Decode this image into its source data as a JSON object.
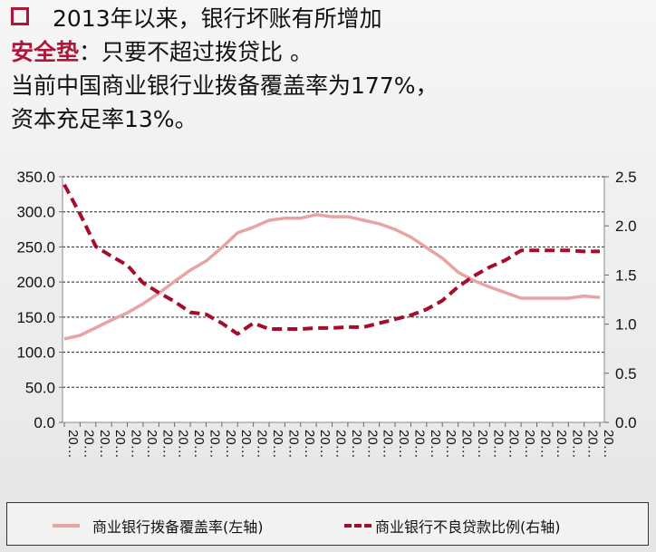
{
  "header": {
    "line1": "2013年以来，银行坏账有所增加",
    "line2_highlight": "安全垫",
    "line2_rest": "：只要不超过拨贷比 。",
    "line3": "当前中国商业银行业拨备覆盖率为177%，",
    "line4": "资本充足率13%。",
    "bullet_icon": "hollow-square-icon"
  },
  "colors": {
    "accent": "#b0163a",
    "series_left": "#e8a3a3",
    "series_right": "#a50e2a"
  },
  "chart_data": {
    "type": "line",
    "categories": [
      "20…",
      "20…",
      "20…",
      "20…",
      "20…",
      "20…",
      "20…",
      "20…",
      "20…",
      "20…",
      "20…",
      "20…",
      "20…",
      "20…",
      "20…",
      "20…",
      "20…",
      "20…",
      "20…",
      "20…",
      "20…",
      "20…",
      "20…",
      "20…",
      "20…",
      "20…",
      "20…",
      "20…",
      "20…",
      "20…",
      "20…",
      "20…",
      "20…",
      "20…",
      "20…"
    ],
    "series": [
      {
        "name": "商业银行拨备覆盖率(左轴)",
        "axis": "left",
        "style": "solid",
        "color": "#e8a3a3",
        "values": [
          119,
          124,
          135,
          146,
          156,
          169,
          184,
          201,
          217,
          230,
          249,
          270,
          278,
          288,
          291,
          291,
          296,
          293,
          293,
          288,
          283,
          275,
          264,
          249,
          234,
          214,
          202,
          193,
          185,
          177,
          177,
          177,
          177,
          180,
          178
        ]
      },
      {
        "name": "商业银行不良贷款比例(右轴)",
        "axis": "right",
        "style": "dashed",
        "color": "#a50e2a",
        "values": [
          2.42,
          2.12,
          1.79,
          1.69,
          1.6,
          1.42,
          1.32,
          1.23,
          1.12,
          1.1,
          1.01,
          0.9,
          1.01,
          0.95,
          0.95,
          0.95,
          0.96,
          0.96,
          0.97,
          0.97,
          1.01,
          1.05,
          1.09,
          1.15,
          1.24,
          1.38,
          1.49,
          1.58,
          1.65,
          1.75,
          1.75,
          1.75,
          1.75,
          1.74,
          1.74
        ]
      }
    ],
    "y_left": {
      "range": [
        0,
        350
      ],
      "ticks": [
        "0.0",
        "50.0",
        "100.0",
        "150.0",
        "200.0",
        "250.0",
        "300.0",
        "350.0"
      ]
    },
    "y_right": {
      "range": [
        0,
        2.5
      ],
      "ticks": [
        "0.0",
        "0.5",
        "1.0",
        "1.5",
        "2.0",
        "2.5"
      ]
    },
    "grid": "horizontal dashed",
    "legend_placement": "bottom"
  }
}
